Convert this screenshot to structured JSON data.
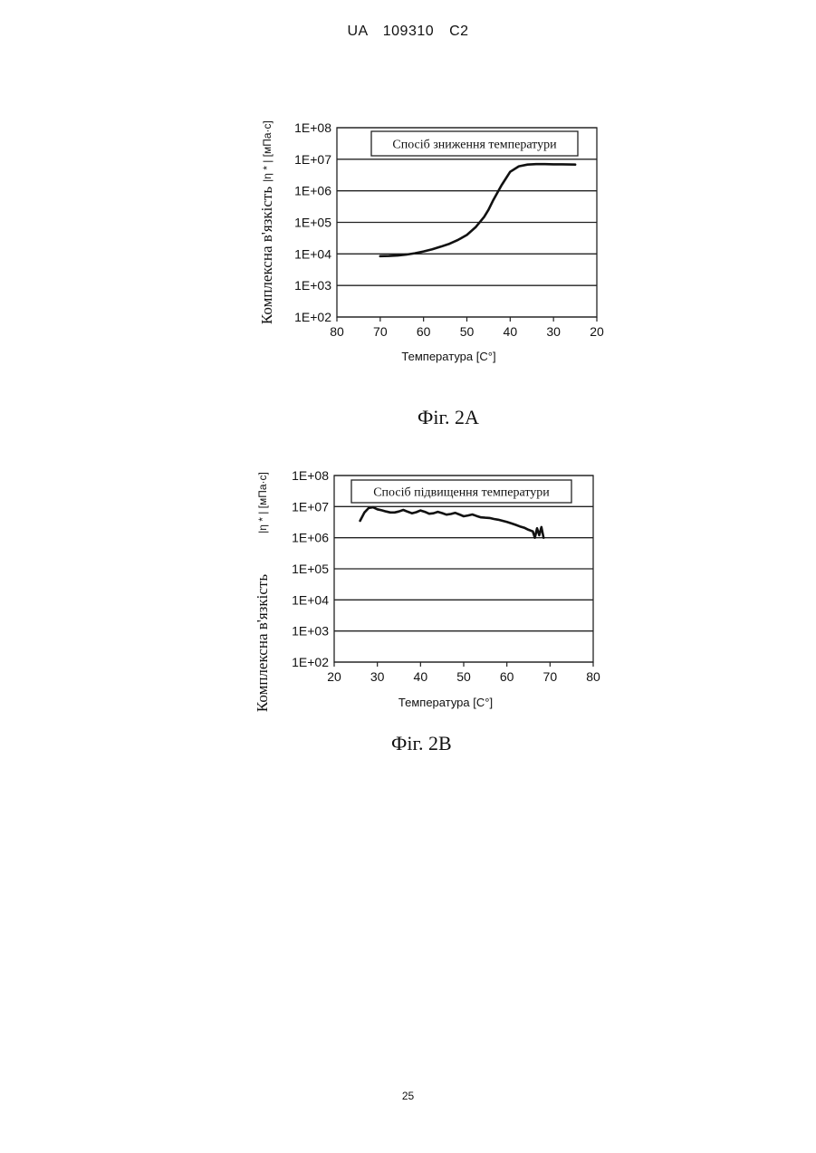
{
  "header": {
    "text": "UA   109310   C2"
  },
  "footer": {
    "page_number": "25"
  },
  "figures": [
    {
      "caption": "Фіг. 2А"
    },
    {
      "caption": "Фіг. 2В"
    }
  ],
  "chart_data": [
    {
      "type": "line",
      "legend_label": "Спосіб зниження температури",
      "xlabel": "Температура [С°]",
      "ylabel": "Комплексна в'язкість",
      "ylabel_units": "|η * | [мПа·с]",
      "x_ticks": [
        "80",
        "70",
        "60",
        "50",
        "40",
        "30",
        "20"
      ],
      "y_ticks": [
        "1E+02",
        "1E+03",
        "1E+04",
        "1E+05",
        "1E+06",
        "1E+07",
        "1E+08"
      ],
      "xlim": [
        80,
        20
      ],
      "ylim": [
        100,
        100000000
      ],
      "y_scale": "log",
      "grid": "horizontal",
      "series": [
        {
          "x": [
            70,
            68,
            66,
            64,
            62,
            60,
            58,
            56,
            54,
            52,
            50,
            48,
            46,
            45,
            44,
            42,
            40,
            38,
            36,
            34,
            32,
            30,
            28,
            25
          ],
          "y": [
            8500,
            8600,
            8900,
            9500,
            10500,
            12000,
            14000,
            17000,
            21000,
            28000,
            40000,
            70000,
            150000,
            250000,
            480000,
            1500000,
            4000000,
            6000000,
            6800000,
            7000000,
            7000000,
            6900000,
            6900000,
            6800000
          ]
        }
      ]
    },
    {
      "type": "line",
      "legend_label": "Спосіб підвищення температури",
      "xlabel": "Температура [С°]",
      "ylabel": "Комплексна в'язкість",
      "ylabel_units": "|η * | [мПа·с]",
      "x_ticks": [
        "20",
        "30",
        "40",
        "50",
        "60",
        "70",
        "80"
      ],
      "y_ticks": [
        "1E+02",
        "1E+03",
        "1E+04",
        "1E+05",
        "1E+06",
        "1E+07",
        "1E+08"
      ],
      "xlim": [
        20,
        80
      ],
      "ylim": [
        100,
        100000000
      ],
      "y_scale": "log",
      "grid": "horizontal",
      "series": [
        {
          "x": [
            26,
            27,
            28,
            29,
            30,
            31,
            32,
            33,
            34,
            35,
            36,
            37,
            38,
            39,
            40,
            41,
            42,
            43,
            44,
            45,
            46,
            47,
            48,
            49,
            50,
            51,
            52,
            53,
            54,
            55,
            56,
            57,
            58,
            59,
            60,
            61,
            62,
            63,
            64,
            65,
            66,
            66.5,
            67,
            67.5,
            68,
            68.5
          ],
          "y": [
            3500000,
            6500000,
            9000000,
            9500000,
            8200000,
            7600000,
            7000000,
            6500000,
            6500000,
            7000000,
            7800000,
            6900000,
            6100000,
            6600000,
            7500000,
            6800000,
            5900000,
            6100000,
            6800000,
            6200000,
            5500000,
            5800000,
            6300000,
            5600000,
            4900000,
            5200000,
            5600000,
            5000000,
            4500000,
            4400000,
            4300000,
            4000000,
            3800000,
            3500000,
            3200000,
            2900000,
            2600000,
            2300000,
            2100000,
            1800000,
            1600000,
            1000000,
            2000000,
            1200000,
            2200000,
            1000000
          ]
        }
      ]
    }
  ]
}
